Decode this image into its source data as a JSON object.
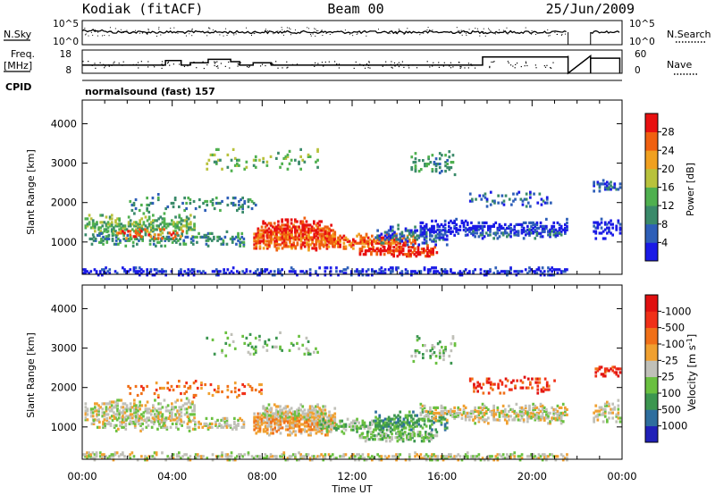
{
  "header": {
    "station": "Kodiak (fitACF)",
    "beam": "Beam 00",
    "date": "25/Jun/2009"
  },
  "panel_labels": {
    "nsky": "N.Sky",
    "nsearch": "N.Search",
    "freq_l1": "Freq.",
    "freq_l2": "[MHz]",
    "nave": "Nave",
    "cpid": "CPID",
    "cpid_text": "normalsound (fast) 157"
  },
  "chart_data": [
    {
      "type": "line",
      "name": "noise",
      "yleft_ticks": [
        "10^5",
        "10^0"
      ],
      "yright_ticks": [
        "10^5",
        "10^0"
      ]
    },
    {
      "type": "line",
      "name": "frequency",
      "yleft_ticks": [
        "18",
        "8"
      ],
      "yright_ticks": [
        "60",
        "0"
      ],
      "x": [
        0,
        2.7,
        3.7,
        4.4,
        4.8,
        5.6,
        6.6,
        7.0,
        7.6,
        8.4,
        17.8,
        21.6,
        22.6,
        23.5
      ],
      "y": [
        11.5,
        11.5,
        13.5,
        11.5,
        12.5,
        14.0,
        13.0,
        11.5,
        12.5,
        11.5,
        15.0,
        15.5,
        14.5,
        14.5
      ]
    },
    {
      "type": "heatmap",
      "name": "power",
      "ylabel": "Slant Range [km]",
      "yticks": [
        1000,
        2000,
        3000,
        4000
      ],
      "ylim": [
        180,
        4600
      ],
      "colorbar_label": "Power [dB]",
      "colorbar_ticks": [
        "4",
        "8",
        "12",
        "16",
        "20",
        "24",
        "28"
      ],
      "colors": [
        "#1a1ae6",
        "#2e5fb8",
        "#3a8a6a",
        "#4fb04f",
        "#b8c23c",
        "#f0a020",
        "#f06010",
        "#e81010"
      ]
    },
    {
      "type": "heatmap",
      "name": "velocity",
      "ylabel": "Slant Range [km]",
      "yticks": [
        1000,
        2000,
        3000,
        4000
      ],
      "ylim": [
        180,
        4600
      ],
      "colorbar_label": "Velocity [m s^-1]",
      "colorbar_ticks": [
        "1000",
        "500",
        "100",
        "25",
        "-25",
        "-100",
        "-500",
        "-1000"
      ],
      "colors": [
        "#2020b8",
        "#2e6e9e",
        "#3c9650",
        "#6ac040",
        "#c0c0b8",
        "#f0a030",
        "#f07018",
        "#f03018",
        "#e01010"
      ]
    }
  ],
  "xaxis": {
    "xlabel": "Time UT",
    "xlim": [
      0,
      24
    ],
    "tick_labels": [
      "00:00",
      "04:00",
      "08:00",
      "12:00",
      "16:00",
      "20:00",
      "00:00"
    ]
  }
}
